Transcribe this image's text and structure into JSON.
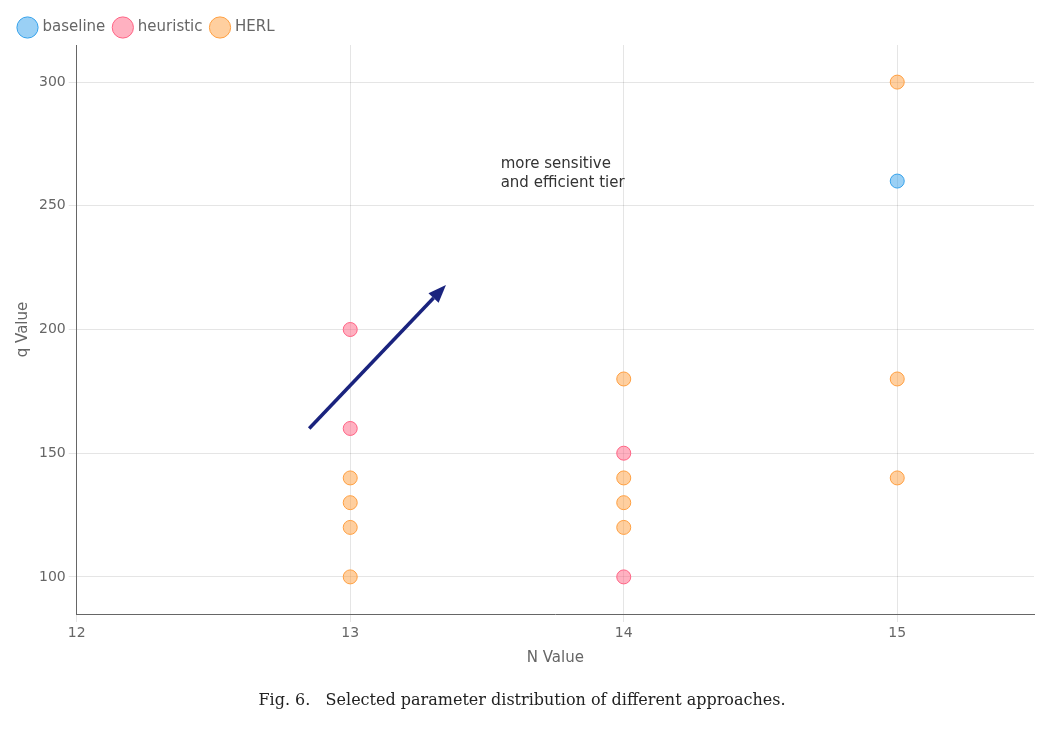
{
  "chart_data": {
    "type": "scatter",
    "xlabel": "N Value",
    "ylabel": "q Value",
    "caption": "Fig. 6.   Selected parameter distribution of different approaches.",
    "series": [
      {
        "name": "baseline",
        "x": [
          15
        ],
        "values": [
          260
        ]
      },
      {
        "name": "heuristic",
        "x": [
          13,
          13,
          14,
          14
        ],
        "values": [
          200,
          160,
          150,
          100
        ]
      },
      {
        "name": "HERL",
        "x": [
          13,
          13,
          13,
          13,
          14,
          14,
          14,
          14,
          15,
          15,
          15
        ],
        "values": [
          140,
          130,
          120,
          100,
          180,
          140,
          130,
          120,
          300,
          180,
          140
        ]
      }
    ],
    "xlim": [
      12,
      15.5
    ],
    "ylim": [
      85,
      315
    ],
    "xticks": [
      12,
      13,
      14,
      15
    ],
    "yticks": [
      100,
      150,
      200,
      250,
      300
    ],
    "grid": true,
    "legend": "upper left",
    "annotations": [
      {
        "type": "text",
        "text": "more sensitive\nand efficient tier",
        "x": 13.55,
        "y": 270
      },
      {
        "type": "arrow",
        "x": 12.85,
        "y": 160,
        "x_end": 13.35,
        "y_end": 218,
        "color": "#1a237e"
      }
    ]
  }
}
